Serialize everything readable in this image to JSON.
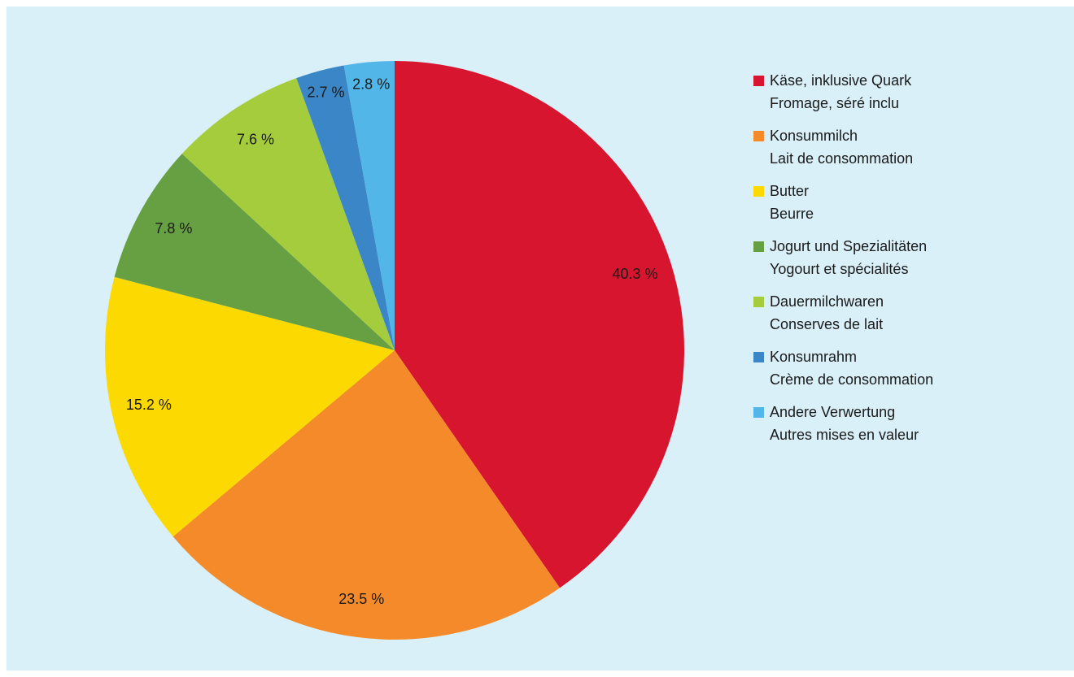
{
  "chart_data": {
    "type": "pie",
    "labels": [
      [
        "Käse, inklusive Quark",
        "Fromage, séré inclu"
      ],
      [
        "Konsummilch",
        "Lait de consommation"
      ],
      [
        "Butter",
        "Beurre"
      ],
      [
        "Jogurt und Spezialitäten",
        "Yogourt et spécialités"
      ],
      [
        "Dauermilchwaren",
        "Conserves de lait"
      ],
      [
        "Konsumrahm",
        "Crème de consommation"
      ],
      [
        "Andere Verwertung",
        "Autres mises en valeur"
      ]
    ],
    "values": [
      40.3,
      23.5,
      15.2,
      7.8,
      7.6,
      2.7,
      2.8
    ],
    "value_labels": [
      "40.3 %",
      "23.5 %",
      "15.2 %",
      "7.8 %",
      "7.6 %",
      "2.7 %",
      "2.8 %"
    ],
    "colors": [
      "#d7152e",
      "#f58a2a",
      "#fcd900",
      "#67a043",
      "#a5cc3c",
      "#3b86c6",
      "#52b6e8"
    ],
    "legend": "right"
  }
}
